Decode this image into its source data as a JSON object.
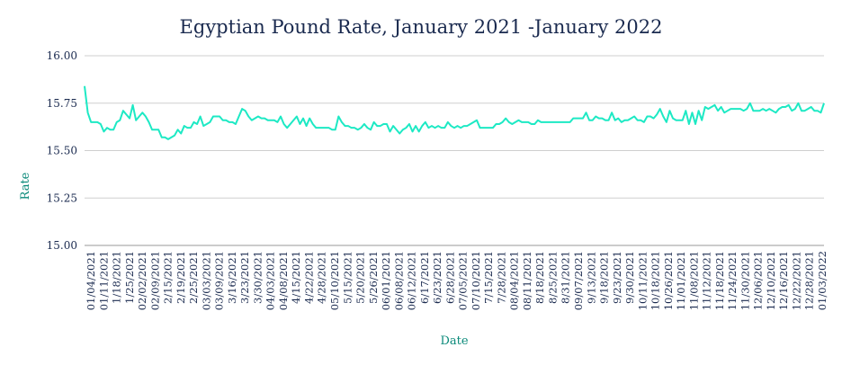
{
  "chart_data": {
    "type": "line",
    "title": "Egyptian Pound Rate, January 2021 -January 2022",
    "xlabel": "Date",
    "ylabel": "Rate",
    "ylim": [
      15.0,
      16.0
    ],
    "yticks": [
      "15.00",
      "15.25",
      "15.50",
      "15.75",
      "16.00"
    ],
    "grid": true,
    "legend": "none",
    "line_color": "#1de9c4",
    "xticks": [
      "01/04/2021",
      "01/11/2021",
      "1/18/2021",
      "1/25/2021",
      "02/02/2021",
      "02/09/2021",
      "2/15/2021",
      "2/19/2021",
      "2/25/2021",
      "03/03/2021",
      "03/09/2021",
      "3/16/2021",
      "3/23/2021",
      "3/30/2021",
      "04/03/2021",
      "04/08/2021",
      "4/15/2021",
      "4/22/2021",
      "4/28/2021",
      "05/10/2021",
      "5/15/2021",
      "5/20/2021",
      "5/26/2021",
      "06/01/2021",
      "06/08/2021",
      "06/12/2021",
      "6/17/2021",
      "6/23/2021",
      "6/28/2021",
      "07/05/2021",
      "07/10/2021",
      "7/15/2021",
      "7/28/2021",
      "08/04/2021",
      "08/11/2021",
      "8/18/2021",
      "8/25/2021",
      "8/31/2021",
      "09/07/2021",
      "9/13/2021",
      "9/18/2021",
      "9/23/2021",
      "9/30/2021",
      "10/11/2021",
      "10/18/2021",
      "10/26/2021",
      "11/01/2021",
      "11/08/2021",
      "11/12/2021",
      "11/18/2021",
      "11/24/2021",
      "11/30/2021",
      "12/06/2021",
      "12/10/2021",
      "12/16/2021",
      "12/22/2021",
      "12/28/2021",
      "01/03/2022"
    ],
    "series": [
      {
        "values": [
          15.84,
          15.7,
          15.65,
          15.65,
          15.65,
          15.64,
          15.6,
          15.62,
          15.61,
          15.61,
          15.65,
          15.66,
          15.71,
          15.69,
          15.67,
          15.74,
          15.66,
          15.68,
          15.7,
          15.68,
          15.65,
          15.61,
          15.61,
          15.61,
          15.57,
          15.57,
          15.56,
          15.57,
          15.58,
          15.61,
          15.59,
          15.63,
          15.62,
          15.62,
          15.65,
          15.64,
          15.68,
          15.63,
          15.64,
          15.65,
          15.68,
          15.68,
          15.68,
          15.66,
          15.66,
          15.65,
          15.65,
          15.64,
          15.68,
          15.72,
          15.71,
          15.68,
          15.66,
          15.67,
          15.68,
          15.67,
          15.67,
          15.66,
          15.66,
          15.66,
          15.65,
          15.68,
          15.64,
          15.62,
          15.64,
          15.66,
          15.68,
          15.64,
          15.67,
          15.63,
          15.67,
          15.64,
          15.62,
          15.62,
          15.62,
          15.62,
          15.62,
          15.61,
          15.61,
          15.68,
          15.65,
          15.63,
          15.63,
          15.62,
          15.62,
          15.61,
          15.62,
          15.64,
          15.62,
          15.61,
          15.65,
          15.63,
          15.63,
          15.64,
          15.64,
          15.6,
          15.63,
          15.61,
          15.59,
          15.61,
          15.62,
          15.64,
          15.6,
          15.63,
          15.6,
          15.63,
          15.65,
          15.62,
          15.63,
          15.62,
          15.63,
          15.62,
          15.62,
          15.65,
          15.63,
          15.62,
          15.63,
          15.62,
          15.63,
          15.63,
          15.64,
          15.65,
          15.66,
          15.62,
          15.62,
          15.62,
          15.62,
          15.62,
          15.64,
          15.64,
          15.65,
          15.67,
          15.65,
          15.64,
          15.65,
          15.66,
          15.65,
          15.65,
          15.65,
          15.64,
          15.64,
          15.66,
          15.65,
          15.65,
          15.65,
          15.65,
          15.65,
          15.65,
          15.65,
          15.65,
          15.65,
          15.65,
          15.67,
          15.67,
          15.67,
          15.67,
          15.7,
          15.66,
          15.66,
          15.68,
          15.67,
          15.67,
          15.66,
          15.66,
          15.7,
          15.66,
          15.67,
          15.65,
          15.66,
          15.66,
          15.67,
          15.68,
          15.66,
          15.66,
          15.65,
          15.68,
          15.68,
          15.67,
          15.69,
          15.72,
          15.68,
          15.65,
          15.71,
          15.67,
          15.66,
          15.66,
          15.66,
          15.71,
          15.64,
          15.7,
          15.64,
          15.71,
          15.66,
          15.73,
          15.72,
          15.73,
          15.74,
          15.71,
          15.73,
          15.7,
          15.71,
          15.72,
          15.72,
          15.72,
          15.72,
          15.71,
          15.72,
          15.75,
          15.71,
          15.71,
          15.71,
          15.72,
          15.71,
          15.72,
          15.71,
          15.7,
          15.72,
          15.73,
          15.73,
          15.74,
          15.71,
          15.72,
          15.75,
          15.71,
          15.71,
          15.72,
          15.73,
          15.71,
          15.71,
          15.7,
          15.75
        ]
      }
    ]
  }
}
